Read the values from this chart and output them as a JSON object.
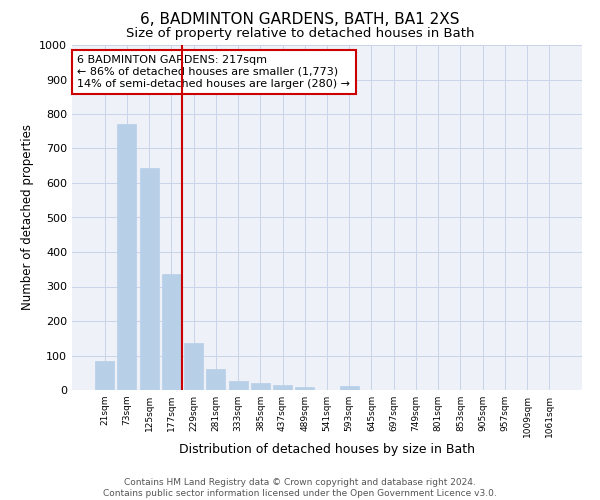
{
  "title": "6, BADMINTON GARDENS, BATH, BA1 2XS",
  "subtitle": "Size of property relative to detached houses in Bath",
  "xlabel": "Distribution of detached houses by size in Bath",
  "ylabel": "Number of detached properties",
  "footer_line1": "Contains HM Land Registry data © Crown copyright and database right 2024.",
  "footer_line2": "Contains public sector information licensed under the Open Government Licence v3.0.",
  "bar_labels": [
    "21sqm",
    "73sqm",
    "125sqm",
    "177sqm",
    "229sqm",
    "281sqm",
    "333sqm",
    "385sqm",
    "437sqm",
    "489sqm",
    "541sqm",
    "593sqm",
    "645sqm",
    "697sqm",
    "749sqm",
    "801sqm",
    "853sqm",
    "905sqm",
    "957sqm",
    "1009sqm",
    "1061sqm"
  ],
  "bar_values": [
    83,
    770,
    643,
    335,
    137,
    60,
    26,
    20,
    15,
    10,
    0,
    13,
    0,
    0,
    0,
    0,
    0,
    0,
    0,
    0,
    0
  ],
  "bar_color": "#b8cfe8",
  "bar_edgecolor": "#b8cfe8",
  "grid_color": "#c8d4e8",
  "background_color": "#eef2f8",
  "vline_x": 3.5,
  "vline_color": "#cc0000",
  "ylim": [
    0,
    1000
  ],
  "yticks": [
    0,
    100,
    200,
    300,
    400,
    500,
    600,
    700,
    800,
    900,
    1000
  ],
  "annotation_title": "6 BADMINTON GARDENS: 217sqm",
  "annotation_line2": "← 86% of detached houses are smaller (1,773)",
  "annotation_line3": "14% of semi-detached houses are larger (280) →",
  "annotation_box_color": "#cc0000",
  "title_fontsize": 11,
  "subtitle_fontsize": 9.5,
  "xlabel_fontsize": 9,
  "ylabel_fontsize": 8.5,
  "annotation_fontsize": 8,
  "footer_fontsize": 6.5
}
